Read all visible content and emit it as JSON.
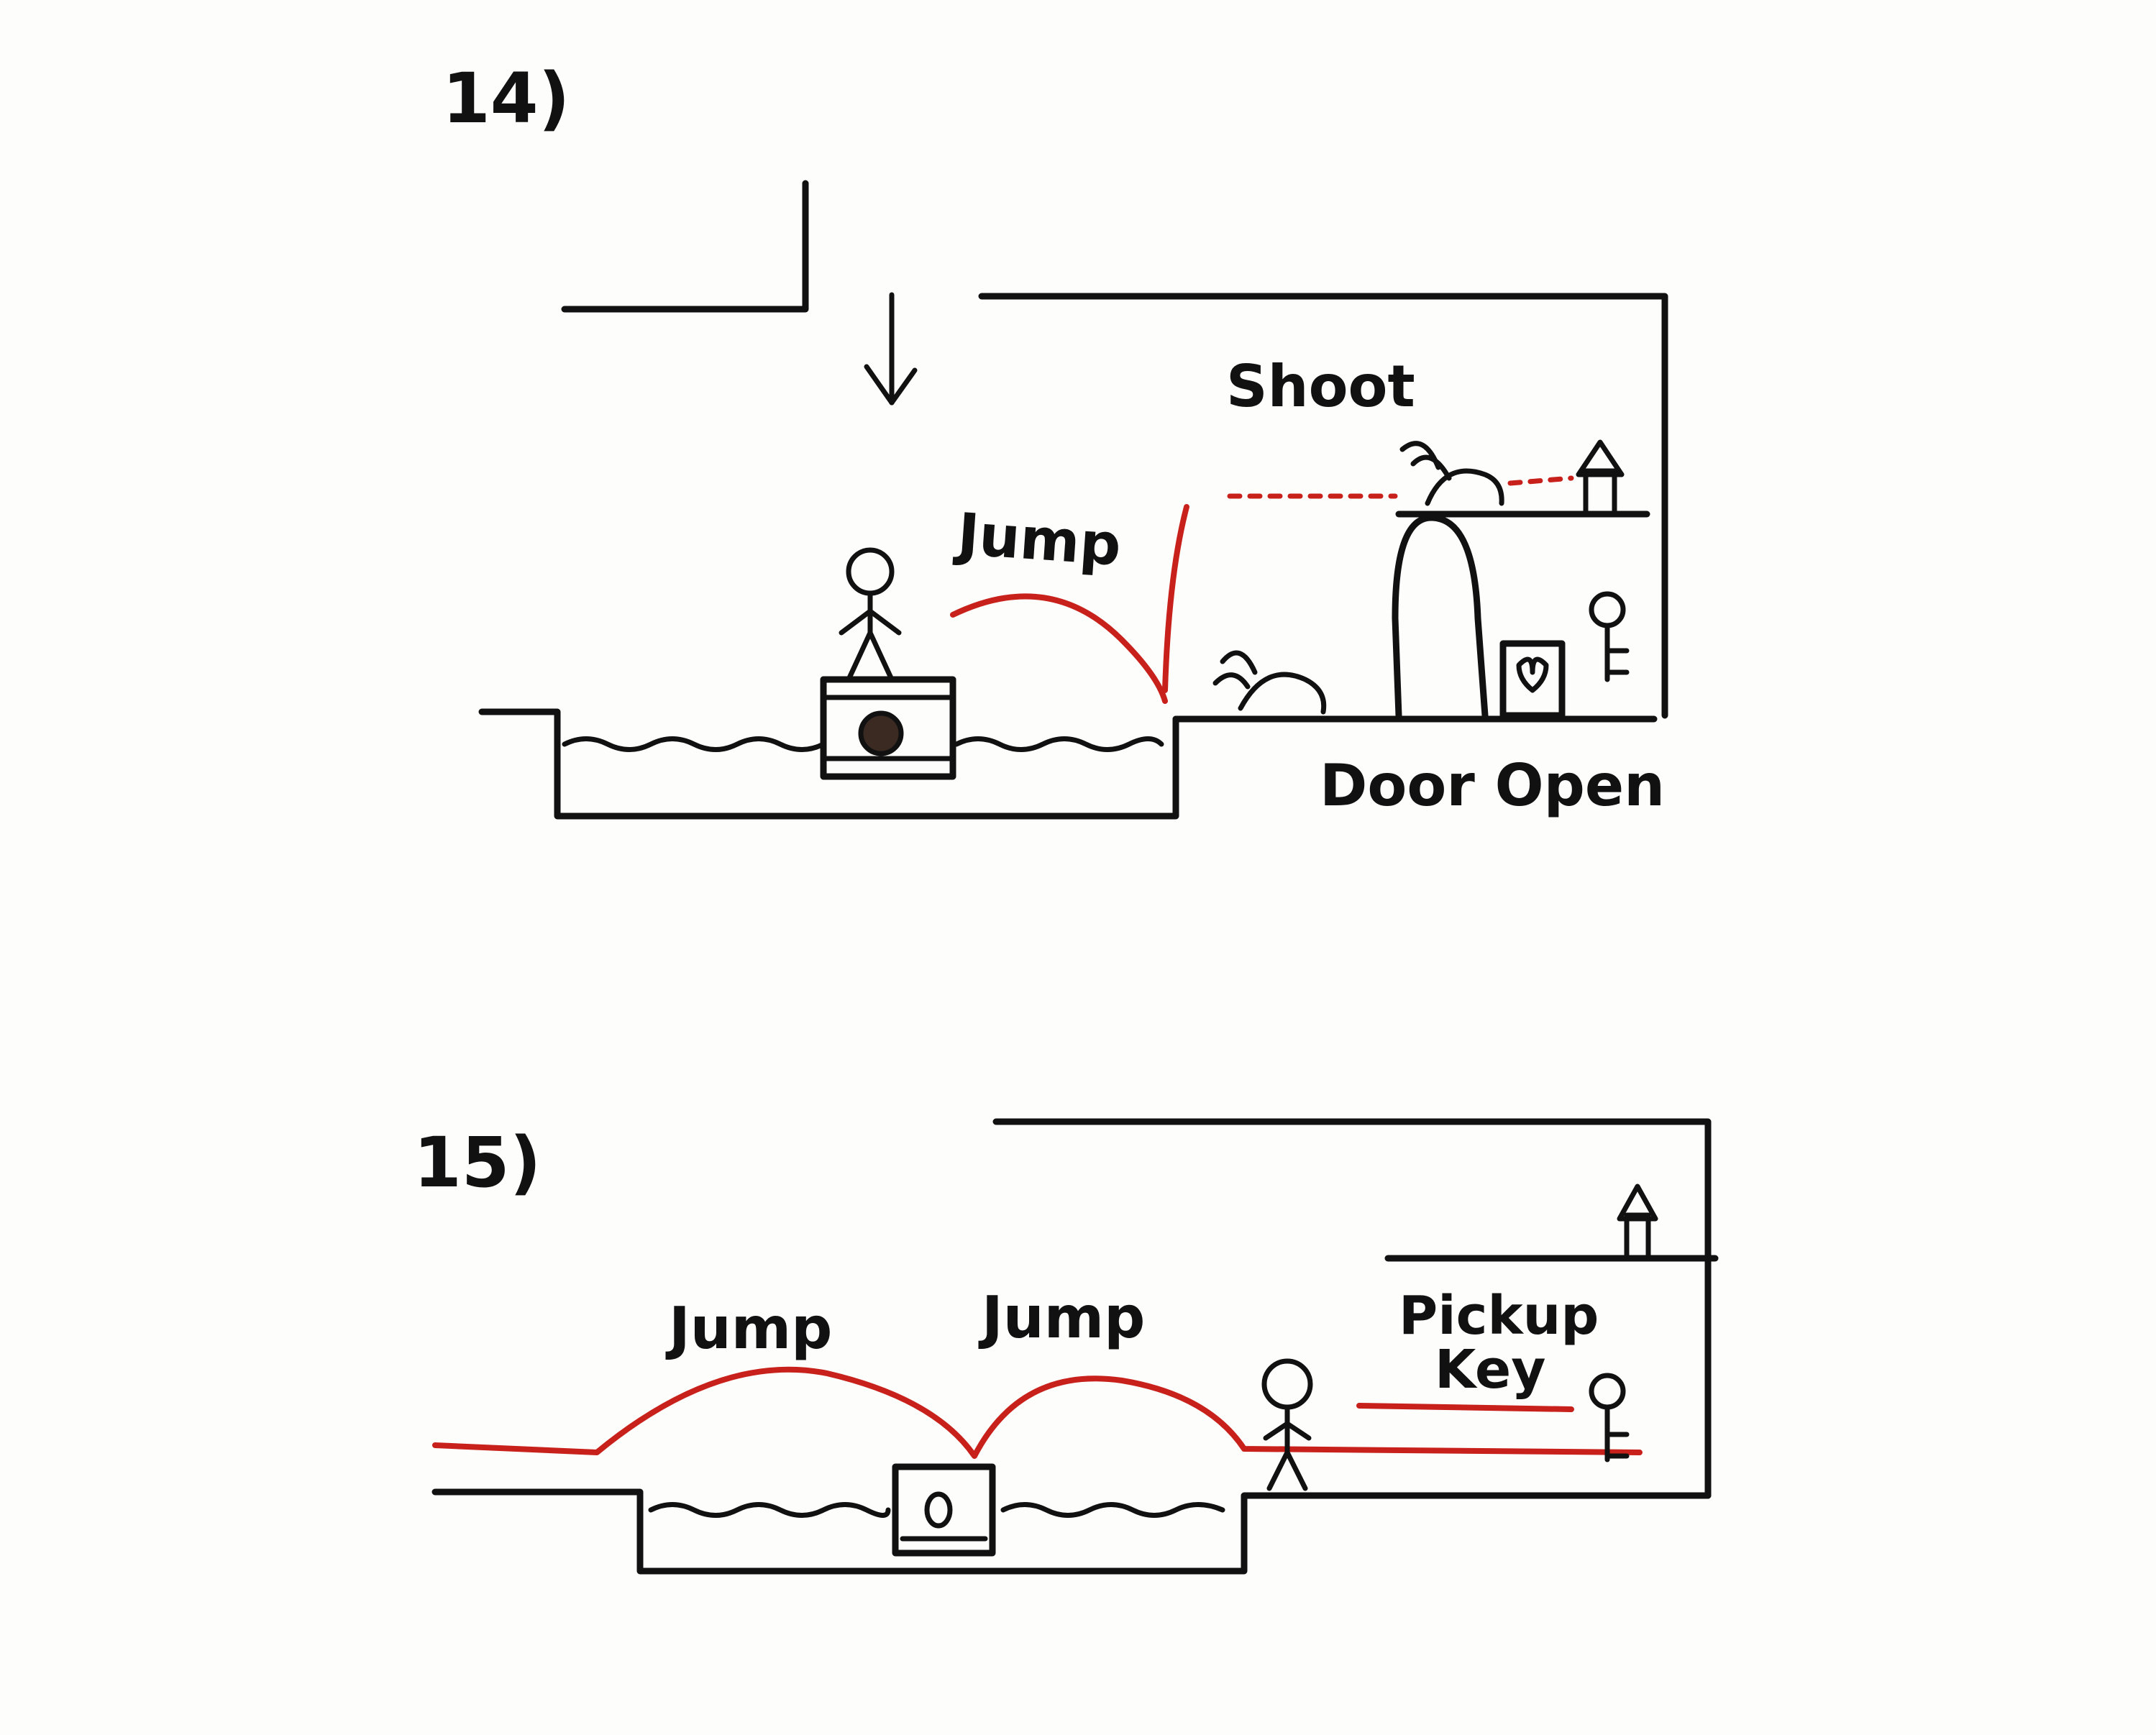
{
  "panel14": {
    "number": "14)",
    "jump_label": "Jump",
    "shoot_label": "Shoot",
    "door_label": "Door Open"
  },
  "panel15": {
    "number": "15)",
    "jump1_label": "Jump",
    "jump2_label": "Jump",
    "pickup_label": "Pickup",
    "key_label": "Key"
  },
  "colors": {
    "ink": "#111111",
    "annotation": "#c8211b",
    "paper": "#fdfdfb"
  }
}
